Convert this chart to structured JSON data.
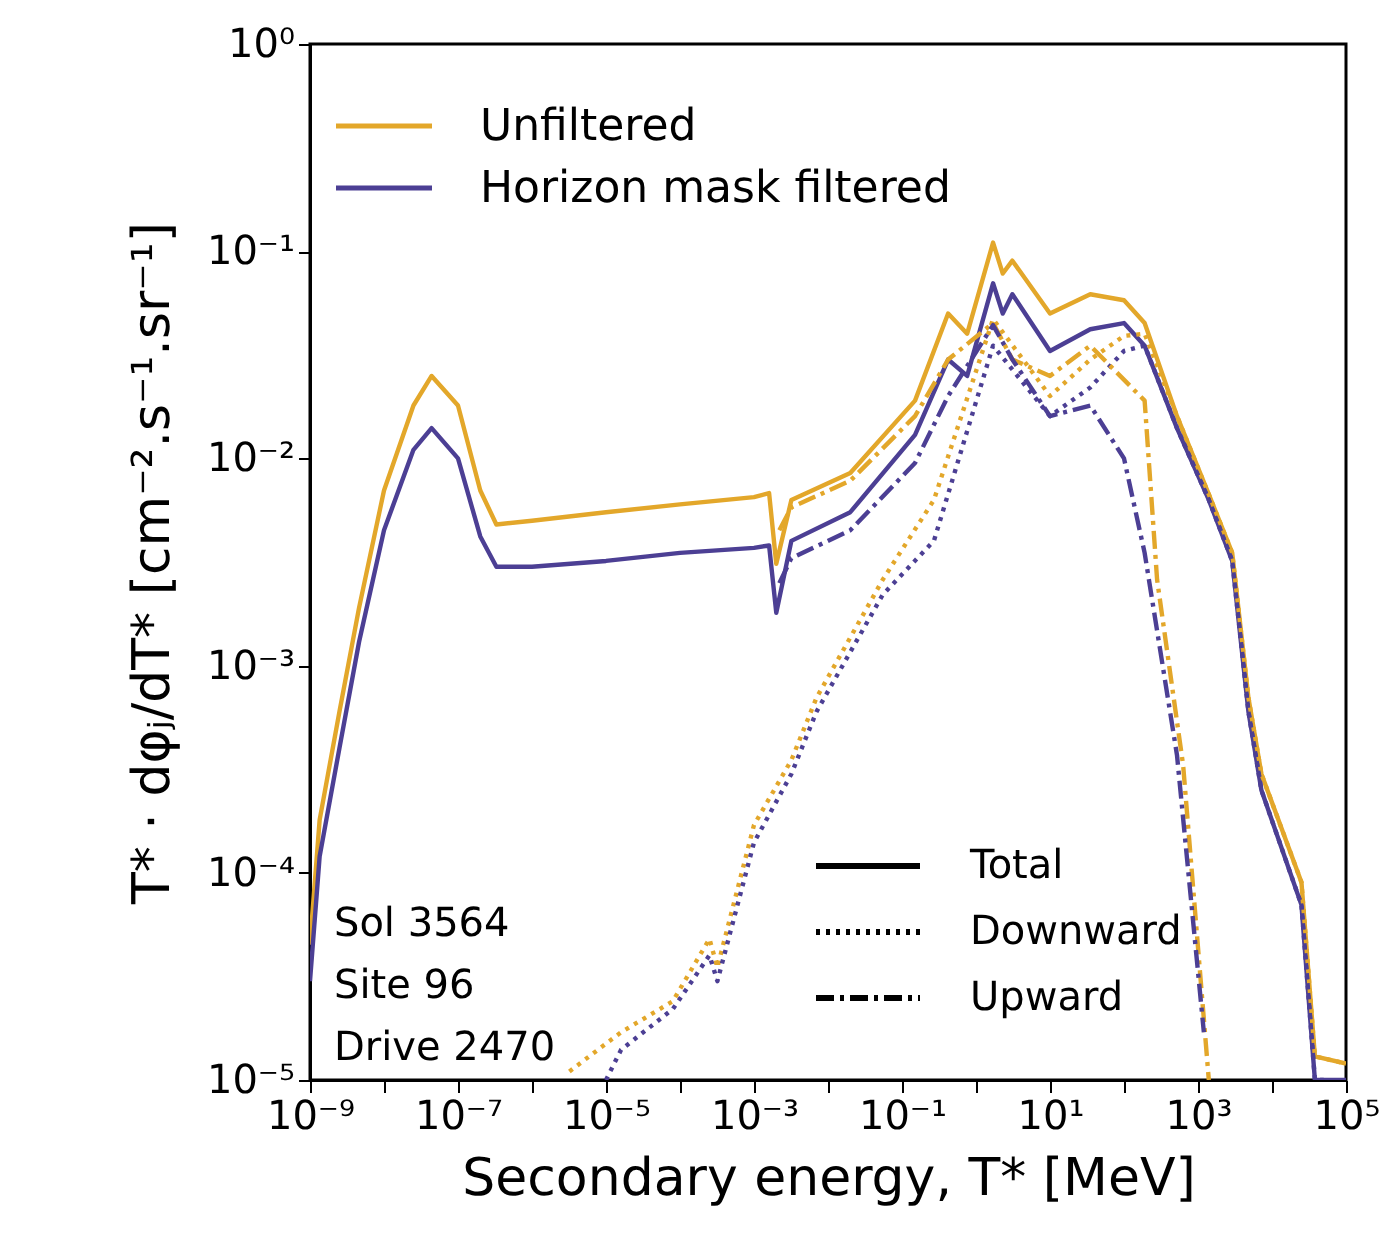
{
  "chart_data": {
    "type": "line",
    "xlabel": "Secondary energy, T* [MeV]",
    "ylabel": "T* · dφⱼ/dT*  [cm⁻².s⁻¹.sr⁻¹]",
    "log": "xy",
    "legend": "top left",
    "grid": false,
    "marker": "none",
    "xlim": [
      1e-09,
      100000.0
    ],
    "ylim": [
      1e-05,
      1
    ],
    "xticks": [
      {
        "value": 1e-09,
        "label": "10⁻⁹"
      },
      {
        "value": 1e-08,
        "label": null
      },
      {
        "value": 1e-07,
        "label": "10⁻⁷"
      },
      {
        "value": 1e-06,
        "label": null
      },
      {
        "value": 1e-05,
        "label": "10⁻⁵"
      },
      {
        "value": 0.0001,
        "label": null
      },
      {
        "value": 0.001,
        "label": "10⁻³"
      },
      {
        "value": 0.01,
        "label": null
      },
      {
        "value": 0.1,
        "label": "10⁻¹"
      },
      {
        "value": 1,
        "label": null
      },
      {
        "value": 10,
        "label": "10¹"
      },
      {
        "value": 100,
        "label": null
      },
      {
        "value": 1000,
        "label": "10³"
      },
      {
        "value": 10000,
        "label": null
      },
      {
        "value": 100000,
        "label": "10⁵"
      }
    ],
    "yticks": [
      {
        "value": 1e-05,
        "label": "10⁻⁵"
      },
      {
        "value": 0.0001,
        "label": "10⁻⁴"
      },
      {
        "value": 0.001,
        "label": "10⁻³"
      },
      {
        "value": 0.01,
        "label": "10⁻²"
      },
      {
        "value": 0.1,
        "label": "10⁻¹"
      },
      {
        "value": 1,
        "label": "10⁰"
      }
    ],
    "annotations": [
      "Total",
      "Downward",
      "Upward",
      "Sol 3564",
      "Site 96",
      "Drive 2470"
    ],
    "series": [
      {
        "name": "Unfiltered",
        "color": "#e3a72a",
        "line_style": "solid",
        "x": [
          1e-09,
          1.35e-09,
          2.5e-09,
          4.6e-09,
          1e-08,
          2.5e-08,
          4.4e-08,
          1e-07,
          2e-07,
          3.3e-07,
          1e-06,
          1e-05,
          0.0001,
          0.001,
          0.0016,
          0.002,
          0.0032,
          0.02,
          0.15,
          0.42,
          0.76,
          1.7,
          2.3,
          3.1,
          10,
          35,
          100,
          190,
          520,
          1400,
          2900,
          4800,
          7200,
          25000,
          38000,
          100000.0
        ],
        "values": [
          4.5e-05,
          0.00018,
          0.0006,
          0.0019,
          0.007,
          0.018,
          0.025,
          0.018,
          0.007,
          0.0048,
          0.005,
          0.0055,
          0.006,
          0.0065,
          0.0068,
          0.0031,
          0.0063,
          0.0085,
          0.019,
          0.05,
          0.04,
          0.11,
          0.078,
          0.09,
          0.05,
          0.062,
          0.058,
          0.045,
          0.016,
          0.0067,
          0.0035,
          0.0007,
          0.0003,
          9e-05,
          1.3e-05,
          1.2e-05
        ]
      },
      {
        "name": "Horizon mask filtered",
        "color": "#4c3f94",
        "line_style": "solid",
        "x": [
          1e-09,
          1.35e-09,
          2.5e-09,
          4.6e-09,
          1e-08,
          2.5e-08,
          4.4e-08,
          1e-07,
          2e-07,
          3.3e-07,
          1e-06,
          1e-05,
          0.0001,
          0.001,
          0.0016,
          0.002,
          0.0032,
          0.02,
          0.15,
          0.42,
          0.76,
          1.7,
          2.3,
          3.1,
          10,
          35,
          100,
          190,
          520,
          1400,
          2900,
          4800,
          7200,
          25000,
          38000,
          100000.0
        ],
        "values": [
          3e-05,
          0.00012,
          0.0004,
          0.0013,
          0.0045,
          0.011,
          0.014,
          0.01,
          0.0042,
          0.003,
          0.003,
          0.0032,
          0.0035,
          0.0037,
          0.0038,
          0.0018,
          0.004,
          0.0055,
          0.013,
          0.03,
          0.025,
          0.07,
          0.05,
          0.062,
          0.033,
          0.042,
          0.045,
          0.035,
          0.014,
          0.0063,
          0.0032,
          0.0006,
          0.00025,
          7e-05,
          1e-05,
          1e-05
        ]
      },
      {
        "color": "#e3a72a",
        "line_style": "dotted",
        "x": [
          3.2e-06,
          1.6e-05,
          8e-05,
          0.00025,
          0.00032,
          0.001,
          0.0032,
          0.007,
          0.055,
          0.27,
          1.7,
          10,
          35,
          100,
          190,
          520,
          1400,
          2900,
          4800,
          7200,
          25000,
          38000,
          100000.0
        ],
        "values": [
          1.1e-05,
          1.7e-05,
          2.4e-05,
          4.8e-05,
          3.5e-05,
          0.00017,
          0.00035,
          0.0007,
          0.0026,
          0.0063,
          0.047,
          0.02,
          0.03,
          0.039,
          0.04,
          0.016,
          0.0067,
          0.0035,
          0.0007,
          0.0003,
          9e-05,
          1.3e-05,
          1.2e-05
        ]
      },
      {
        "color": "#4c3f94",
        "line_style": "dotted",
        "x": [
          1e-05,
          1.6e-05,
          8e-05,
          0.00025,
          0.00032,
          0.001,
          0.0032,
          0.007,
          0.055,
          0.27,
          1.7,
          10,
          35,
          100,
          190,
          520,
          1400,
          2900,
          4800,
          7200,
          25000,
          38000,
          50000.0
        ],
        "values": [
          1e-05,
          1.4e-05,
          2.2e-05,
          4e-05,
          3e-05,
          0.00014,
          0.0003,
          0.0006,
          0.0022,
          0.004,
          0.035,
          0.016,
          0.022,
          0.033,
          0.035,
          0.014,
          0.0063,
          0.0032,
          0.0006,
          0.00025,
          7e-05,
          1e-05,
          1e-05
        ]
      },
      {
        "color": "#e3a72a",
        "line_style": "dashed",
        "x": [
          0.0022,
          0.0032,
          0.02,
          0.15,
          0.42,
          1.7,
          3.1,
          10,
          35,
          190,
          280,
          630,
          1400
        ],
        "values": [
          0.0045,
          0.0058,
          0.0078,
          0.016,
          0.03,
          0.045,
          0.03,
          0.025,
          0.035,
          0.019,
          0.0026,
          0.00033,
          1e-05
        ]
      },
      {
        "color": "#4c3f94",
        "line_style": "dashed",
        "x": [
          0.0022,
          0.0032,
          0.02,
          0.15,
          0.42,
          1.7,
          3.1,
          10,
          35,
          100,
          190,
          520,
          1200
        ],
        "values": [
          0.0025,
          0.0033,
          0.0045,
          0.0095,
          0.02,
          0.044,
          0.03,
          0.016,
          0.018,
          0.01,
          0.0035,
          0.00037,
          1.7e-05
        ]
      }
    ]
  }
}
